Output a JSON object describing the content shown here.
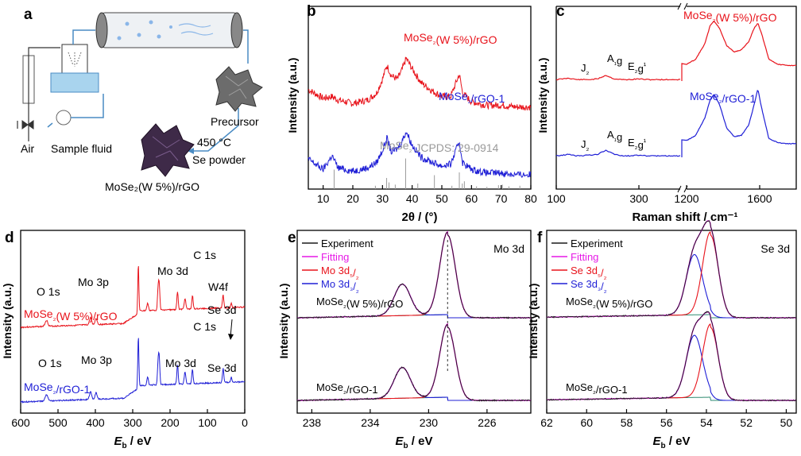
{
  "figure": {
    "panel_letters": [
      "a",
      "b",
      "c",
      "d",
      "e",
      "f"
    ],
    "schematic": {
      "labels": {
        "air": "Air",
        "sample_fluid": "Sample fluid",
        "precursor": "Precursor",
        "temperature": "450 °C",
        "se_powder": "Se powder",
        "product": "MoSe₂(W 5%)/rGO"
      }
    }
  },
  "colors": {
    "red": "#e8131b",
    "blue": "#1f1fd6",
    "black": "#1a1a1a",
    "magenta": "#e619e6",
    "green": "#2e8b70",
    "gray": "#9a9a9a"
  },
  "chart_data": [
    {
      "panel": "b",
      "type": "line",
      "xlabel": "2θ / (°)",
      "ylabel": "Intensity (a.u.)",
      "xlim": [
        5,
        80
      ],
      "xticks": [
        10,
        20,
        30,
        40,
        50,
        60,
        70,
        80
      ],
      "series": [
        {
          "name": "MoSe₂(W 5%)/rGO",
          "color": "#e8131b",
          "offset": 0.78,
          "x": [
            5,
            10,
            13,
            15,
            20,
            25,
            28,
            30,
            31.5,
            33,
            35,
            36.5,
            38,
            40,
            43,
            47,
            50,
            53,
            55.9,
            57,
            60,
            65,
            70,
            75,
            80
          ],
          "y": [
            0.16,
            0.11,
            0.12,
            0.1,
            0.08,
            0.1,
            0.14,
            0.22,
            0.3,
            0.24,
            0.22,
            0.27,
            0.34,
            0.28,
            0.2,
            0.15,
            0.12,
            0.12,
            0.25,
            0.14,
            0.09,
            0.07,
            0.07,
            0.06,
            0.06
          ]
        },
        {
          "name": "MoSe₂/rGO-1",
          "color": "#1f1fd6",
          "offset": 0.42,
          "x": [
            5,
            10,
            13,
            15,
            20,
            25,
            28,
            30,
            31.5,
            33,
            35,
            36.5,
            38,
            40,
            43,
            47,
            50,
            53,
            55.9,
            57,
            60,
            65,
            70,
            75,
            80
          ],
          "y": [
            0.12,
            0.06,
            0.14,
            0.07,
            0.05,
            0.07,
            0.1,
            0.17,
            0.24,
            0.16,
            0.18,
            0.22,
            0.28,
            0.2,
            0.13,
            0.1,
            0.08,
            0.09,
            0.22,
            0.1,
            0.06,
            0.04,
            0.04,
            0.03,
            0.03
          ]
        }
      ],
      "reference": {
        "label": "MoSe₂ JCPDS: 29-0914",
        "positions": [
          13.7,
          27.6,
          31.4,
          32.2,
          34.3,
          37.8,
          41.9,
          47.5,
          53.4,
          55.9,
          56.9,
          57.6,
          61.7,
          65.2,
          69.1,
          70.4,
          72.6,
          76.3
        ],
        "heights": [
          0.35,
          0.06,
          0.2,
          0.12,
          0.08,
          0.55,
          0.1,
          0.25,
          0.06,
          0.3,
          0.1,
          0.14,
          0.05,
          0.04,
          0.07,
          0.08,
          0.05,
          0.06
        ]
      }
    },
    {
      "panel": "c",
      "type": "line",
      "xlabel": "Raman shift / cm⁻¹",
      "ylabel": "Intensity (a.u.)",
      "broken_axis": true,
      "segments": [
        {
          "xlim": [
            100,
            400
          ],
          "xticks": [
            100,
            300
          ]
        },
        {
          "xlim": [
            1200,
            1800
          ],
          "xticks": [
            1200,
            1600
          ]
        }
      ],
      "series": [
        {
          "name": "MoSe₂(W 5%)/rGO",
          "color": "#e8131b",
          "annotations": [
            "J₂",
            "A₁g",
            "E₂g¹"
          ],
          "low": {
            "x": [
              100,
              130,
              150,
              180,
              200,
              220,
              240,
              260,
              280,
              300,
              320,
              350,
              380,
              400
            ],
            "y": [
              0.02,
              0.04,
              0.02,
              0.02,
              0.03,
              0.08,
              0.03,
              0.02,
              0.02,
              0.03,
              0.02,
              0.02,
              0.02,
              0.02
            ]
          },
          "high": {
            "x": [
              1200,
              1250,
              1300,
              1330,
              1350,
              1380,
              1420,
              1460,
              1500,
              1540,
              1570,
              1590,
              1610,
              1650,
              1700,
              1750,
              1800
            ],
            "y": [
              0.1,
              0.15,
              0.3,
              0.48,
              0.52,
              0.45,
              0.28,
              0.22,
              0.24,
              0.32,
              0.45,
              0.5,
              0.4,
              0.15,
              0.1,
              0.09,
              0.09
            ]
          }
        },
        {
          "name": "MoSe₂/rGO-1",
          "color": "#1f1fd6",
          "annotations": [
            "J₂",
            "A₁g",
            "E₂g¹"
          ],
          "low": {
            "x": [
              100,
              130,
              150,
              180,
              200,
              220,
              240,
              260,
              280,
              300,
              320,
              350,
              380,
              400
            ],
            "y": [
              0.02,
              0.04,
              0.02,
              0.03,
              0.04,
              0.1,
              0.04,
              0.02,
              0.02,
              0.03,
              0.02,
              0.02,
              0.02,
              0.02
            ]
          },
          "high": {
            "x": [
              1200,
              1250,
              1300,
              1330,
              1350,
              1380,
              1420,
              1460,
              1500,
              1540,
              1570,
              1590,
              1610,
              1650,
              1700,
              1750,
              1800
            ],
            "y": [
              0.1,
              0.15,
              0.32,
              0.5,
              0.55,
              0.45,
              0.22,
              0.14,
              0.15,
              0.25,
              0.45,
              0.6,
              0.42,
              0.12,
              0.08,
              0.07,
              0.07
            ]
          }
        }
      ]
    },
    {
      "panel": "d",
      "type": "line",
      "xlabel": "E_b / eV",
      "xlabel_main": "E",
      "xlabel_sub": "b",
      "xlabel_unit": " / eV",
      "ylabel": "Intensity (a.u.)",
      "xlim": [
        600,
        0
      ],
      "xticks": [
        600,
        500,
        400,
        300,
        200,
        100,
        0
      ],
      "series": [
        {
          "name": "MoSe₂(W 5%)/rGO",
          "color": "#e8131b",
          "peak_labels": [
            "O 1s",
            "Mo 3p",
            "C 1s",
            "Mo 3d",
            "W4f",
            "Se 3d"
          ]
        },
        {
          "name": "MoSe₂/rGO-1",
          "color": "#1f1fd6",
          "peak_labels": [
            "O 1s",
            "Mo 3p",
            "C 1s",
            "Mo 3d",
            "Se 3d"
          ]
        }
      ]
    },
    {
      "panel": "e",
      "type": "line",
      "title": "Mo 3d",
      "xlabel": "E_b / eV",
      "xlabel_main": "E",
      "xlabel_sub": "b",
      "xlabel_unit": " / eV",
      "ylabel": "Intensity (a.u.)",
      "xlim": [
        239,
        223
      ],
      "xticks": [
        238,
        234,
        230,
        226
      ],
      "legend": [
        "Experiment",
        "Fitting",
        "Mo 3d₅/₂",
        "Mo 3d₃/₂"
      ],
      "samples": [
        "MoSe₂(W 5%)/rGO",
        "MoSe₂/rGO-1"
      ],
      "peaks": {
        "Mo 3d5/2": 228.7,
        "Mo 3d3/2": 231.8
      }
    },
    {
      "panel": "f",
      "type": "line",
      "title": "Se 3d",
      "xlabel": "E_b / eV",
      "xlabel_main": "E",
      "xlabel_sub": "b",
      "xlabel_unit": " / eV",
      "ylabel": "Intensity (a.u.)",
      "xlim": [
        62,
        49.5
      ],
      "xticks": [
        62,
        60,
        58,
        56,
        54,
        52,
        50
      ],
      "legend": [
        "Experiment",
        "Fitting",
        "Se 3d₅/₂",
        "Se 3d₃/₂"
      ],
      "samples": [
        "MoSe₂(W 5%)/rGO",
        "MoSe₂/rGO-1"
      ],
      "peaks": {
        "Se 3d5/2": 53.8,
        "Se 3d3/2": 54.6
      }
    }
  ]
}
